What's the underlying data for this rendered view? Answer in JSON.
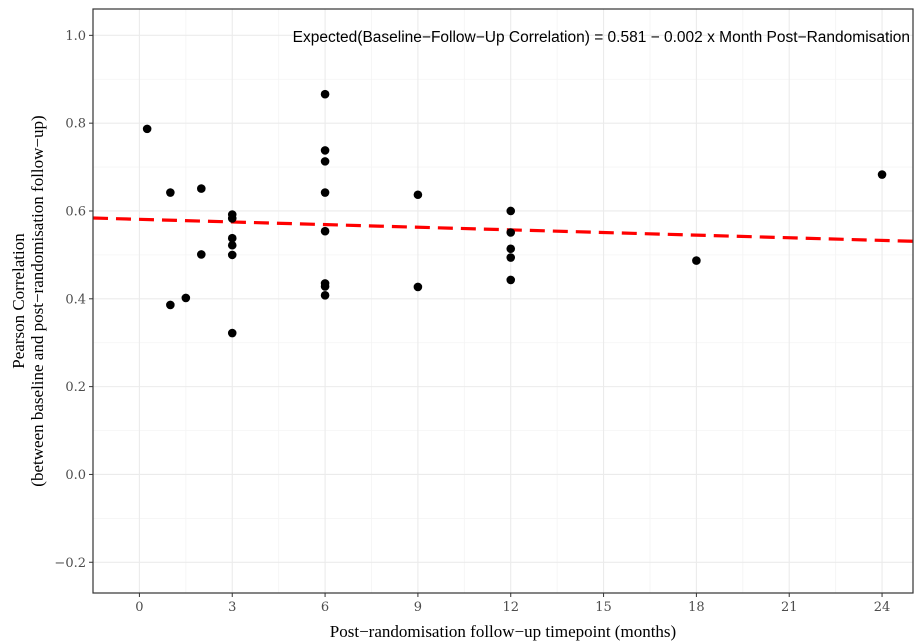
{
  "chart_data": {
    "type": "scatter",
    "annotation": "Expected(Baseline−Follow−Up Correlation) = 0.581 − 0.002 x Month Post−Randomisation",
    "xlabel": "Post−randomisation follow−up timepoint (months)",
    "ylabel": [
      "Pearson Correlation",
      "(between baseline and post−randomisation follow−up)"
    ],
    "xlim": [
      -1.5,
      25
    ],
    "ylim": [
      -0.27,
      1.06
    ],
    "x_ticks": [
      0,
      3,
      6,
      9,
      12,
      15,
      18,
      21,
      24
    ],
    "y_ticks": [
      -0.2,
      0.0,
      0.2,
      0.4,
      0.6,
      0.8,
      1.0
    ],
    "y_tick_labels": [
      "−0.2",
      "0.0",
      "0.2",
      "0.4",
      "0.6",
      "0.8",
      "1.0"
    ],
    "grid": true,
    "points": [
      {
        "x": 0.25,
        "y": 0.787
      },
      {
        "x": 1,
        "y": 0.642
      },
      {
        "x": 1,
        "y": 0.386
      },
      {
        "x": 1.5,
        "y": 0.402
      },
      {
        "x": 2,
        "y": 0.651
      },
      {
        "x": 2,
        "y": 0.501
      },
      {
        "x": 3,
        "y": 0.592
      },
      {
        "x": 3,
        "y": 0.583
      },
      {
        "x": 3,
        "y": 0.538
      },
      {
        "x": 3,
        "y": 0.522
      },
      {
        "x": 3,
        "y": 0.5
      },
      {
        "x": 3,
        "y": 0.322
      },
      {
        "x": 6,
        "y": 0.866
      },
      {
        "x": 6,
        "y": 0.738
      },
      {
        "x": 6,
        "y": 0.713
      },
      {
        "x": 6,
        "y": 0.642
      },
      {
        "x": 6,
        "y": 0.554
      },
      {
        "x": 6,
        "y": 0.435
      },
      {
        "x": 6,
        "y": 0.428
      },
      {
        "x": 6,
        "y": 0.408
      },
      {
        "x": 9,
        "y": 0.637
      },
      {
        "x": 9,
        "y": 0.427
      },
      {
        "x": 12,
        "y": 0.6
      },
      {
        "x": 12,
        "y": 0.551
      },
      {
        "x": 12,
        "y": 0.514
      },
      {
        "x": 12,
        "y": 0.494
      },
      {
        "x": 12,
        "y": 0.443
      },
      {
        "x": 18,
        "y": 0.487
      },
      {
        "x": 24,
        "y": 0.683
      }
    ],
    "trend_line": {
      "intercept": 0.581,
      "slope": -0.002,
      "color": "#ff0000",
      "style": "dashed"
    },
    "colors": {
      "points": "#000000",
      "grid_major": "#ebebeb",
      "grid_minor": "#f4f4f4",
      "panel_border": "#333333"
    }
  }
}
